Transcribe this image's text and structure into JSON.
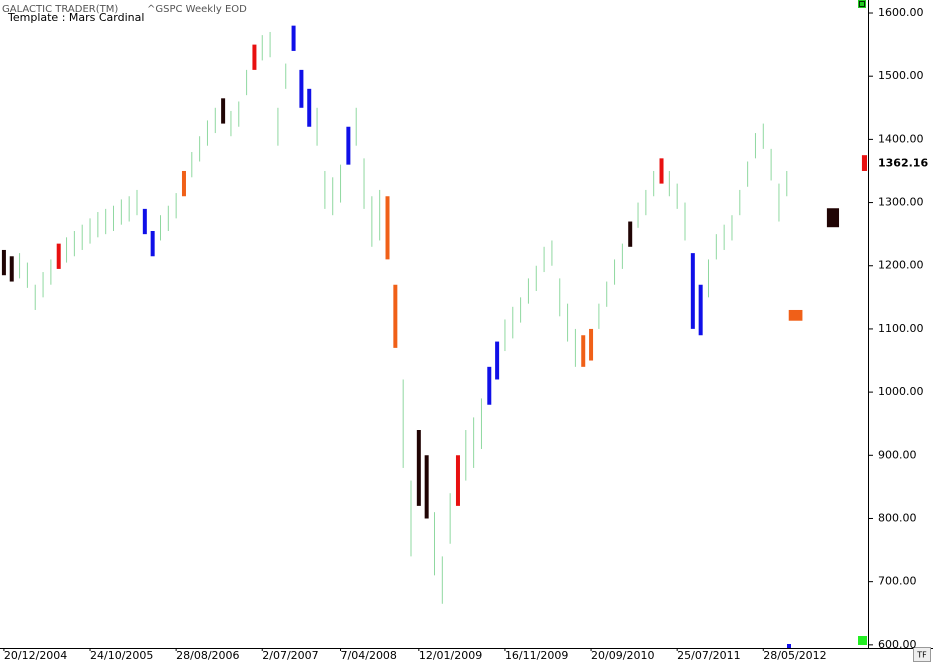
{
  "header": {
    "app": "GALACTIC TRADER(TM)",
    "symbol": "^GSPC Weekly EOD",
    "template": "Template : Mars Cardinal",
    "corner_button": "TF"
  },
  "chart_data": {
    "type": "bar-range",
    "xlim": [
      -2,
      441.5
    ],
    "ylim": [
      595,
      1620.6
    ],
    "xticks": [
      {
        "value": 0,
        "label": "20/12/2004"
      },
      {
        "value": 44,
        "label": "24/10/2005"
      },
      {
        "value": 88,
        "label": "28/08/2006"
      },
      {
        "value": 132,
        "label": "2/07/2007"
      },
      {
        "value": 172,
        "label": "7/04/2008"
      },
      {
        "value": 212,
        "label": "12/01/2009"
      },
      {
        "value": 256,
        "label": "16/11/2009"
      },
      {
        "value": 300,
        "label": "20/09/2010"
      },
      {
        "value": 344,
        "label": "25/07/2011"
      },
      {
        "value": 388,
        "label": "28/05/2012"
      }
    ],
    "yticks": [
      {
        "value": 600,
        "label": "600.00"
      },
      {
        "value": 700,
        "label": "700.00"
      },
      {
        "value": 800,
        "label": "800.00"
      },
      {
        "value": 900,
        "label": "900.00"
      },
      {
        "value": 1000,
        "label": "1000.00"
      },
      {
        "value": 1100,
        "label": "1100.00"
      },
      {
        "value": 1200,
        "label": "1200.00"
      },
      {
        "value": 1300,
        "label": "1300.00"
      },
      {
        "value": 1400,
        "label": "1400.00"
      },
      {
        "value": 1500,
        "label": "1500.00"
      },
      {
        "value": 1600,
        "label": "1600.00"
      }
    ],
    "last_price": 1362.16,
    "series": [
      {
        "color": "#8fd8a0",
        "width": 1,
        "x": [
          8,
          12,
          16,
          20,
          24,
          32,
          36,
          40,
          44,
          48,
          52,
          56,
          60,
          64,
          68,
          80,
          84,
          88,
          96,
          100,
          104,
          108,
          116,
          120,
          124,
          132,
          136,
          140,
          144,
          160,
          164,
          168,
          172,
          180,
          184,
          188,
          192,
          204,
          208,
          220,
          224,
          228,
          236,
          240,
          244,
          256,
          260,
          264,
          268,
          272,
          276,
          280,
          284,
          288,
          292,
          304,
          308,
          312,
          316,
          324,
          328,
          332,
          340,
          344,
          348,
          360,
          364,
          368,
          372,
          376,
          380,
          384,
          388,
          392,
          396,
          400
        ],
        "low": [
          1180,
          1165,
          1130,
          1150,
          1170,
          1205,
          1215,
          1225,
          1235,
          1245,
          1250,
          1255,
          1265,
          1270,
          1280,
          1240,
          1255,
          1275,
          1340,
          1365,
          1390,
          1410,
          1405,
          1420,
          1470,
          1525,
          1530,
          1390,
          1480,
          1390,
          1290,
          1280,
          1300,
          1390,
          1290,
          1230,
          1240,
          880,
          740,
          710,
          665,
          760,
          860,
          880,
          910,
          1065,
          1085,
          1110,
          1140,
          1160,
          1190,
          1200,
          1120,
          1080,
          1040,
          1100,
          1135,
          1170,
          1195,
          1260,
          1280,
          1310,
          1310,
          1290,
          1240,
          1150,
          1210,
          1225,
          1240,
          1280,
          1325,
          1370,
          1385,
          1335,
          1270,
          1310
        ],
        "high": [
          1220,
          1205,
          1170,
          1190,
          1210,
          1245,
          1255,
          1265,
          1275,
          1285,
          1290,
          1295,
          1305,
          1310,
          1320,
          1280,
          1295,
          1315,
          1380,
          1405,
          1430,
          1450,
          1445,
          1460,
          1510,
          1565,
          1570,
          1450,
          1520,
          1450,
          1350,
          1340,
          1360,
          1450,
          1370,
          1310,
          1320,
          1020,
          860,
          810,
          740,
          840,
          940,
          960,
          990,
          1115,
          1135,
          1150,
          1180,
          1200,
          1230,
          1240,
          1180,
          1140,
          1100,
          1140,
          1175,
          1210,
          1235,
          1300,
          1320,
          1350,
          1350,
          1330,
          1300,
          1210,
          1250,
          1265,
          1280,
          1320,
          1365,
          1410,
          1425,
          1385,
          1330,
          1350
        ]
      },
      {
        "color": "#1010e8",
        "width": 4,
        "x": [
          72,
          76,
          148,
          152,
          156,
          176,
          248,
          252,
          352,
          356
        ],
        "low": [
          1250,
          1215,
          1540,
          1450,
          1420,
          1360,
          980,
          1020,
          1100,
          1090
        ],
        "high": [
          1290,
          1255,
          1580,
          1510,
          1480,
          1420,
          1040,
          1080,
          1220,
          1170
        ]
      },
      {
        "color": "#e81010",
        "width": 4,
        "x": [
          28,
          128,
          232,
          336
        ],
        "low": [
          1195,
          1510,
          820,
          1330
        ],
        "high": [
          1235,
          1550,
          900,
          1370
        ]
      },
      {
        "color": "#200404",
        "width": 4,
        "x": [
          0,
          4,
          112,
          212,
          216,
          320
        ],
        "low": [
          1185,
          1175,
          1425,
          820,
          800,
          1230
        ],
        "high": [
          1225,
          1215,
          1465,
          940,
          900,
          1270
        ]
      },
      {
        "color": "#f06018",
        "width": 4,
        "x": [
          92,
          196,
          200,
          296,
          300
        ],
        "low": [
          1310,
          1210,
          1070,
          1040,
          1050
        ],
        "high": [
          1350,
          1310,
          1170,
          1090,
          1100
        ]
      }
    ],
    "projections": [
      {
        "color": "#f06018",
        "x": [
          401,
          408
        ],
        "y": [
          1113,
          1130
        ]
      },
      {
        "color": "#200404",
        "x": [
          420.5,
          426.7
        ],
        "y": [
          1261,
          1291
        ]
      },
      {
        "color": "#e81010",
        "x": [
          438.4,
          441
        ],
        "y": [
          1350,
          1375
        ]
      }
    ]
  }
}
